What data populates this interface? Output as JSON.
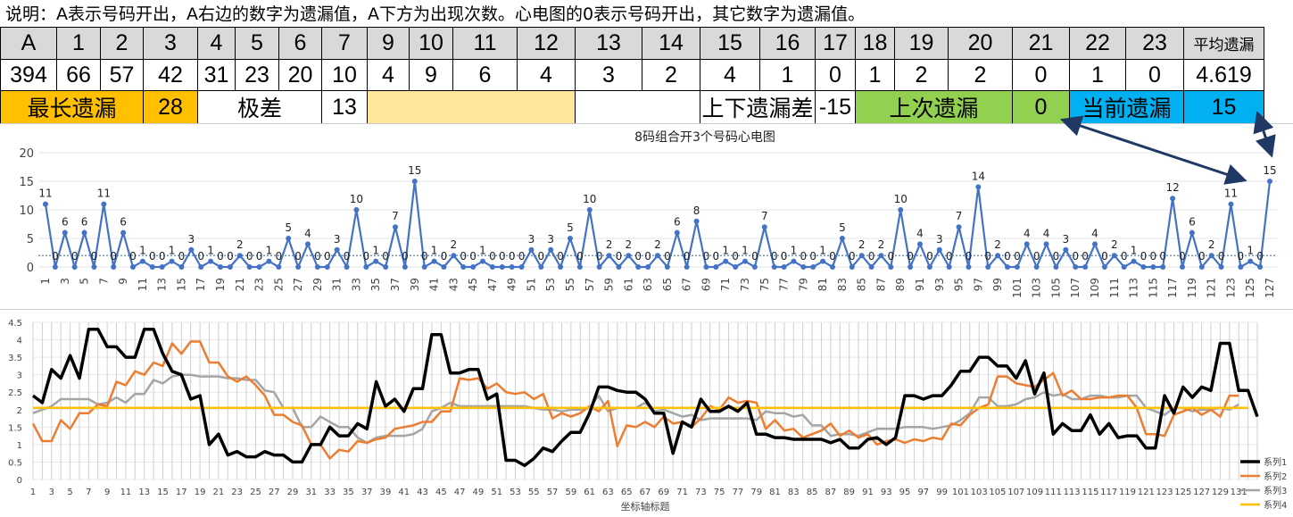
{
  "note": "说明：A表示号码开出，A右边的数字为遗漏值，A下方为出现次数。心电图的0表示号码开出，其它数字为遗漏值。",
  "header_row": [
    "A",
    "1",
    "2",
    "3",
    "4",
    "5",
    "6",
    "7",
    "9",
    "10",
    "11",
    "12",
    "13",
    "14",
    "15",
    "16",
    "17",
    "18",
    "19",
    "20",
    "21",
    "22",
    "23",
    "平均遗漏"
  ],
  "count_row": [
    "394",
    "66",
    "57",
    "42",
    "31",
    "23",
    "20",
    "10",
    "4",
    "9",
    "6",
    "4",
    "3",
    "2",
    "4",
    "1",
    "0",
    "1",
    "2",
    "2",
    "0",
    "1",
    "0",
    "4.619"
  ],
  "stats": {
    "longest_label": "最长遗漏",
    "longest_value": "28",
    "range_label": "极差",
    "range_value": "13",
    "updown_label": "上下遗漏差",
    "updown_value": "-15",
    "last_label": "上次遗漏",
    "last_value": "0",
    "current_label": "当前遗漏",
    "current_value": "15"
  },
  "colors": {
    "orange": "#ffc000",
    "light_yellow": "#ffe699",
    "green": "#92d050",
    "blue": "#00b0f0",
    "header_gray": "#d9d9d9",
    "series_blue": "#4472c4",
    "arrow": "#1f3864"
  },
  "chart_data": [
    {
      "type": "line",
      "title": "8码组合开3个号码心电图",
      "ylim": [
        0,
        20
      ],
      "yticks": [
        0,
        5,
        10,
        15,
        20
      ],
      "x_start": 1,
      "x_end": 127,
      "xtick_step": 2,
      "average_line": 2,
      "values": [
        11,
        0,
        6,
        0,
        6,
        0,
        11,
        0,
        6,
        0,
        1,
        0,
        0,
        1,
        0,
        3,
        0,
        1,
        0,
        0,
        2,
        0,
        0,
        1,
        0,
        5,
        0,
        4,
        0,
        0,
        3,
        0,
        10,
        0,
        1,
        0,
        7,
        0,
        15,
        0,
        1,
        0,
        2,
        0,
        0,
        1,
        0,
        0,
        0,
        0,
        3,
        0,
        3,
        0,
        5,
        0,
        10,
        0,
        2,
        0,
        2,
        0,
        0,
        2,
        0,
        6,
        0,
        8,
        0,
        0,
        1,
        0,
        1,
        0,
        7,
        0,
        0,
        1,
        0,
        0,
        1,
        0,
        5,
        0,
        2,
        0,
        2,
        0,
        10,
        0,
        4,
        0,
        3,
        0,
        7,
        0,
        14,
        0,
        2,
        0,
        0,
        4,
        0,
        4,
        0,
        3,
        0,
        0,
        4,
        0,
        2,
        0,
        1,
        0,
        0,
        0,
        12,
        0,
        6,
        0,
        2,
        0,
        11,
        0,
        1,
        0,
        15
      ],
      "grid": true
    },
    {
      "type": "line",
      "title": "",
      "xlabel": "坐标轴标题",
      "ylim": [
        0,
        4.5
      ],
      "yticks": [
        "0",
        "0.5",
        "1",
        "1.5",
        "2",
        "2.5",
        "3",
        "3.5",
        "4",
        "4.5"
      ],
      "x_start": 1,
      "x_end": 132,
      "xtick_step": 2,
      "legend_position": "bottom-right",
      "series": [
        {
          "name": "系列1",
          "color": "#000000",
          "width": 3.5,
          "values": [
            2.4,
            2.2,
            3.15,
            2.9,
            3.55,
            2.9,
            4.3,
            4.3,
            3.8,
            3.8,
            3.5,
            3.5,
            4.3,
            4.3,
            3.6,
            3.1,
            3.0,
            2.3,
            2.4,
            1.0,
            1.3,
            0.7,
            0.8,
            0.65,
            0.65,
            0.8,
            0.7,
            0.7,
            0.5,
            0.5,
            1.0,
            1.0,
            1.5,
            1.25,
            1.25,
            1.6,
            1.45,
            2.8,
            2.1,
            2.3,
            1.95,
            2.6,
            2.6,
            4.15,
            4.15,
            3.05,
            3.05,
            3.15,
            3.15,
            2.3,
            2.45,
            0.55,
            0.55,
            0.4,
            0.6,
            0.9,
            0.8,
            1.1,
            1.35,
            1.35,
            1.9,
            2.65,
            2.65,
            2.55,
            2.5,
            2.5,
            2.3,
            1.9,
            1.9,
            0.75,
            1.65,
            1.5,
            2.3,
            1.95,
            1.95,
            2.1,
            1.95,
            2.2,
            1.3,
            1.3,
            1.2,
            1.2,
            1.15,
            1.15,
            1.15,
            1.15,
            1.05,
            1.15,
            0.9,
            0.9,
            1.15,
            1.2,
            1.0,
            1.2,
            2.4,
            2.4,
            2.3,
            2.4,
            2.4,
            2.7,
            3.1,
            3.1,
            3.5,
            3.5,
            3.25,
            3.25,
            2.9,
            3.4,
            2.45,
            3.05,
            1.3,
            1.6,
            1.4,
            1.4,
            1.85,
            1.3,
            1.6,
            1.2,
            1.25,
            1.25,
            0.9,
            0.9,
            2.4,
            1.9,
            2.65,
            2.35,
            2.65,
            2.55,
            3.9,
            3.9,
            2.55,
            2.55,
            1.8
          ]
        },
        {
          "name": "系列2",
          "color": "#ed7d31",
          "width": 2.5,
          "values": [
            1.6,
            1.1,
            1.1,
            1.7,
            1.45,
            1.9,
            1.9,
            2.15,
            2.1,
            2.8,
            2.7,
            3.1,
            3.0,
            3.35,
            3.25,
            3.9,
            3.6,
            3.95,
            3.95,
            3.35,
            3.35,
            2.95,
            2.8,
            2.95,
            2.7,
            2.4,
            1.85,
            1.85,
            1.65,
            1.55,
            1.0,
            1.0,
            0.6,
            0.85,
            0.8,
            1.1,
            1.05,
            1.15,
            1.2,
            1.45,
            1.5,
            1.55,
            1.65,
            1.65,
            1.95,
            1.95,
            2.9,
            2.85,
            2.9,
            2.6,
            2.75,
            2.5,
            2.45,
            2.5,
            2.3,
            2.45,
            1.75,
            1.9,
            1.8,
            1.9,
            2.1,
            1.95,
            2.25,
            0.95,
            1.55,
            1.5,
            1.65,
            1.5,
            1.8,
            1.6,
            1.65,
            1.5,
            1.75,
            2.1,
            2.0,
            2.35,
            2.2,
            2.25,
            2.2,
            1.45,
            1.7,
            1.4,
            1.45,
            1.2,
            1.3,
            1.4,
            1.6,
            1.25,
            1.4,
            1.2,
            1.3,
            1.0,
            1.1,
            1.15,
            1.05,
            1.15,
            1.1,
            1.2,
            1.15,
            1.6,
            1.55,
            1.85,
            2.05,
            2.15,
            2.95,
            2.95,
            2.75,
            2.7,
            2.65,
            2.85,
            3.05,
            2.4,
            2.55,
            2.3,
            2.3,
            2.35,
            2.35,
            2.4,
            2.4,
            2.05,
            1.3,
            1.3,
            1.25,
            1.85,
            1.95,
            2.05,
            1.85,
            2.0,
            1.8,
            2.4,
            2.4
          ]
        },
        {
          "name": "系列3",
          "color": "#a5a5a5",
          "width": 2.5,
          "values": [
            1.9,
            2.0,
            2.1,
            2.3,
            2.3,
            2.3,
            2.3,
            2.15,
            2.2,
            2.35,
            2.2,
            2.45,
            2.45,
            2.85,
            2.75,
            2.95,
            3.0,
            3.0,
            2.95,
            2.95,
            2.95,
            2.9,
            2.9,
            2.85,
            2.85,
            2.55,
            2.5,
            2.05,
            2.05,
            1.5,
            1.5,
            1.8,
            1.65,
            1.5,
            1.5,
            1.2,
            1.05,
            1.2,
            1.25,
            1.25,
            1.25,
            1.3,
            1.45,
            1.95,
            2.05,
            2.2,
            2.1,
            2.1,
            2.1,
            2.1,
            2.1,
            2.1,
            2.1,
            2.1,
            2.05,
            2.0,
            2.0,
            1.95,
            2.0,
            2.0,
            2.05,
            2.4,
            1.95,
            2.05,
            2.05,
            2.05,
            2.2,
            1.95,
            2.0,
            1.9,
            1.8,
            1.85,
            1.7,
            1.75,
            1.75,
            1.75,
            1.75,
            1.75,
            1.7,
            1.95,
            1.9,
            1.9,
            1.8,
            1.85,
            1.55,
            1.55,
            1.25,
            1.3,
            1.3,
            1.25,
            1.35,
            1.45,
            1.45,
            1.45,
            1.5,
            1.5,
            1.5,
            1.45,
            1.5,
            1.55,
            1.7,
            1.9,
            2.35,
            2.35,
            2.1,
            2.1,
            2.15,
            2.3,
            2.35,
            2.5,
            2.4,
            2.45,
            2.3,
            2.3,
            2.4,
            2.4,
            2.35,
            2.35,
            2.4,
            2.4,
            2.05,
            1.95,
            1.85,
            2.05,
            2.05,
            1.95,
            2.0,
            2.0,
            2.05,
            2.0,
            2.15
          ]
        },
        {
          "name": "系列4",
          "color": "#ffc000",
          "width": 2.5,
          "values": [
            2.05,
            2.05,
            2.05,
            2.05,
            2.05,
            2.05,
            2.05,
            2.05,
            2.05,
            2.05,
            2.05,
            2.05,
            2.05,
            2.05,
            2.05,
            2.05,
            2.05,
            2.05,
            2.05,
            2.05,
            2.05,
            2.05,
            2.05,
            2.05,
            2.05,
            2.05,
            2.05,
            2.05,
            2.05,
            2.05,
            2.05,
            2.05,
            2.05,
            2.05,
            2.05,
            2.05,
            2.05,
            2.05,
            2.05,
            2.05,
            2.05,
            2.05,
            2.05,
            2.05,
            2.05,
            2.05,
            2.05,
            2.05,
            2.05,
            2.05,
            2.05,
            2.05,
            2.05,
            2.05,
            2.05,
            2.05,
            2.05,
            2.05,
            2.05,
            2.05,
            2.05,
            2.05,
            2.05,
            2.05,
            2.05,
            2.05,
            2.05,
            2.05,
            2.05,
            2.05,
            2.05,
            2.05,
            2.05,
            2.05,
            2.05,
            2.05,
            2.05,
            2.05,
            2.05,
            2.05,
            2.05,
            2.05,
            2.05,
            2.05,
            2.05,
            2.05,
            2.05,
            2.05,
            2.05,
            2.05,
            2.05,
            2.05,
            2.05,
            2.05,
            2.05,
            2.05,
            2.05,
            2.05,
            2.05,
            2.05,
            2.05,
            2.05,
            2.05,
            2.05,
            2.05,
            2.05,
            2.05,
            2.05,
            2.05,
            2.05,
            2.05,
            2.05,
            2.05,
            2.05,
            2.05,
            2.05,
            2.05,
            2.05,
            2.05,
            2.05,
            2.05,
            2.05,
            2.05,
            2.05,
            2.05,
            2.05,
            2.05,
            2.05,
            2.05,
            2.05,
            2.05,
            2.05
          ]
        }
      ]
    }
  ]
}
